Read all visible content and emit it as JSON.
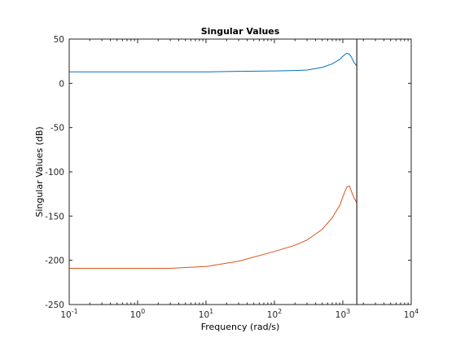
{
  "chart_data": {
    "type": "line",
    "title": "Singular Values",
    "xlabel": "Frequency (rad/s)",
    "ylabel": "Singular Values (dB)",
    "xscale": "log",
    "xlim": [
      0.1,
      10000
    ],
    "ylim": [
      -250,
      50
    ],
    "grid": false,
    "x_tick_labels": [
      {
        "value": 0.1,
        "base": "10",
        "exp": "-1"
      },
      {
        "value": 1,
        "base": "10",
        "exp": "0"
      },
      {
        "value": 10,
        "base": "10",
        "exp": "1"
      },
      {
        "value": 100,
        "base": "10",
        "exp": "2"
      },
      {
        "value": 1000,
        "base": "10",
        "exp": "3"
      },
      {
        "value": 10000,
        "base": "10",
        "exp": "4"
      }
    ],
    "y_ticks": [
      50,
      0,
      -50,
      -100,
      -150,
      -200,
      -250
    ],
    "vertical_line_x": 1600,
    "series": [
      {
        "color": "#0072BD",
        "x": [
          0.1,
          1,
          10,
          30,
          100,
          200,
          300,
          500,
          700,
          900,
          1050,
          1150,
          1250,
          1350,
          1450,
          1550,
          1600
        ],
        "y": [
          13,
          13,
          13,
          13.5,
          14,
          14.5,
          15,
          18,
          22,
          27,
          32,
          34,
          33,
          29,
          24,
          21,
          20
        ]
      },
      {
        "color": "#D95319",
        "x": [
          0.1,
          1,
          3,
          10,
          30,
          100,
          200,
          300,
          500,
          700,
          900,
          1050,
          1150,
          1250,
          1350,
          1450,
          1550,
          1600
        ],
        "y": [
          -209,
          -209,
          -209,
          -207,
          -201,
          -190,
          -183,
          -177,
          -165,
          -152,
          -138,
          -124,
          -117,
          -116,
          -123,
          -129,
          -133,
          -135
        ]
      }
    ]
  }
}
